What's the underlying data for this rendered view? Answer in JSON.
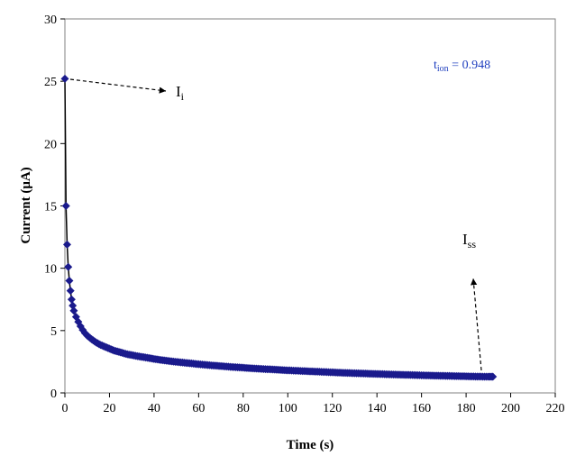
{
  "chart_data": {
    "type": "scatter",
    "xlabel": "Time (s)",
    "ylabel": "Current (μA)",
    "xlim": [
      0,
      220
    ],
    "ylim": [
      0,
      30
    ],
    "xticks": [
      0,
      20,
      40,
      60,
      80,
      100,
      120,
      140,
      160,
      180,
      200,
      220
    ],
    "yticks": [
      0,
      5,
      10,
      15,
      20,
      25,
      30
    ],
    "grid": false,
    "legend": "none",
    "series": [
      {
        "marker": "diamond",
        "color": "#1a1a8c",
        "x": [
          0,
          0.5,
          1,
          1.5,
          2,
          2.5,
          3,
          3.5,
          4,
          5,
          6,
          7,
          8,
          9,
          10,
          12,
          14,
          16,
          18,
          20,
          22,
          25,
          28,
          31,
          34,
          37,
          40,
          44,
          48,
          52,
          56,
          60,
          65,
          70,
          75,
          80,
          85,
          90,
          95,
          100,
          105,
          110,
          115,
          120,
          125,
          130,
          135,
          140,
          145,
          150,
          155,
          160,
          165,
          170,
          175,
          180,
          185,
          190,
          192
        ],
        "y": [
          25.2,
          15.0,
          11.9,
          10.1,
          9.0,
          8.2,
          7.5,
          7.0,
          6.6,
          6.1,
          5.7,
          5.35,
          5.05,
          4.8,
          4.6,
          4.3,
          4.05,
          3.85,
          3.7,
          3.55,
          3.4,
          3.25,
          3.1,
          3.0,
          2.9,
          2.82,
          2.72,
          2.62,
          2.53,
          2.45,
          2.38,
          2.3,
          2.22,
          2.15,
          2.08,
          2.02,
          1.96,
          1.91,
          1.86,
          1.81,
          1.77,
          1.73,
          1.69,
          1.65,
          1.61,
          1.58,
          1.55,
          1.52,
          1.49,
          1.46,
          1.44,
          1.41,
          1.39,
          1.37,
          1.35,
          1.33,
          1.31,
          1.3,
          1.3
        ]
      }
    ],
    "annotations": [
      {
        "text": "I",
        "sub": "i",
        "color": "#000000"
      },
      {
        "text": "I",
        "sub": "ss",
        "color": "#000000"
      },
      {
        "text": "t",
        "sub": "ion",
        "suffix": " = 0.948",
        "color": "#1f3fbf"
      }
    ]
  }
}
